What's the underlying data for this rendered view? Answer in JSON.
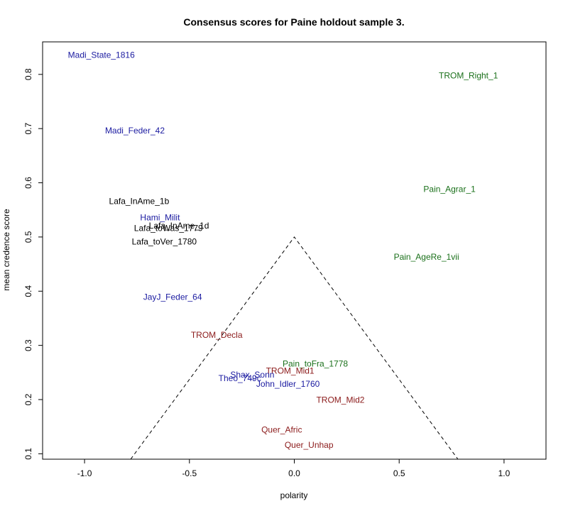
{
  "chart_data": {
    "type": "scatter",
    "title": "Consensus scores for Paine holdout sample 3.",
    "xlabel": "polarity",
    "ylabel": "mean credence score",
    "xlim": [
      -1.2,
      1.2
    ],
    "ylim": [
      0.09,
      0.86
    ],
    "x_ticks": [
      -1.0,
      -0.5,
      0.0,
      0.5,
      1.0
    ],
    "x_tick_labels": [
      "-1.0",
      "-0.5",
      "0.0",
      "0.5",
      "1.0"
    ],
    "y_ticks": [
      0.1,
      0.2,
      0.3,
      0.4,
      0.5,
      0.6,
      0.7,
      0.8
    ],
    "y_tick_labels": [
      "0.1",
      "0.2",
      "0.3",
      "0.4",
      "0.5",
      "0.6",
      "0.7",
      "0.8"
    ],
    "triangle": [
      [
        -0.78,
        0.09
      ],
      [
        0.0,
        0.5
      ],
      [
        0.78,
        0.09
      ]
    ],
    "colors": {
      "blue": "#1a1aa0",
      "black": "#000000",
      "green": "#1a701a",
      "red": "#8b1a1a"
    },
    "points": [
      {
        "label": "Madi_State_1816",
        "x": -0.92,
        "y": 0.835,
        "color": "blue"
      },
      {
        "label": "Madi_Feder_42",
        "x": -0.76,
        "y": 0.695,
        "color": "blue"
      },
      {
        "label": "Lafa_InAme_1b",
        "x": -0.74,
        "y": 0.565,
        "color": "black"
      },
      {
        "label": "Hami_Milit",
        "x": -0.64,
        "y": 0.535,
        "color": "blue"
      },
      {
        "label": "Lafa_InAme_1d",
        "x": -0.55,
        "y": 0.52,
        "color": "black"
      },
      {
        "label": "Lafa_toWas_1779",
        "x": -0.6,
        "y": 0.515,
        "color": "black"
      },
      {
        "label": "Lafa_toVer_1780",
        "x": -0.62,
        "y": 0.49,
        "color": "black"
      },
      {
        "label": "JayJ_Feder_64",
        "x": -0.58,
        "y": 0.388,
        "color": "blue"
      },
      {
        "label": "TROM_Decla",
        "x": -0.37,
        "y": 0.318,
        "color": "red"
      },
      {
        "label": "Pain_toFra_1778",
        "x": 0.1,
        "y": 0.265,
        "color": "green"
      },
      {
        "label": "TROM_Mid1",
        "x": -0.02,
        "y": 0.252,
        "color": "red"
      },
      {
        "label": "Shax_Sonn",
        "x": -0.2,
        "y": 0.245,
        "color": "blue"
      },
      {
        "label": "Theo_749c",
        "x": -0.26,
        "y": 0.238,
        "color": "blue"
      },
      {
        "label": "John_Idler_1760",
        "x": -0.03,
        "y": 0.228,
        "color": "blue"
      },
      {
        "label": "TROM_Mid2",
        "x": 0.22,
        "y": 0.198,
        "color": "red"
      },
      {
        "label": "Quer_Afric",
        "x": -0.06,
        "y": 0.143,
        "color": "red"
      },
      {
        "label": "Quer_Unhap",
        "x": 0.07,
        "y": 0.115,
        "color": "red"
      },
      {
        "label": "TROM_Right_1",
        "x": 0.83,
        "y": 0.797,
        "color": "green"
      },
      {
        "label": "Pain_Agrar_1",
        "x": 0.74,
        "y": 0.587,
        "color": "green"
      },
      {
        "label": "Pain_AgeRe_1vii",
        "x": 0.63,
        "y": 0.462,
        "color": "green"
      }
    ]
  }
}
